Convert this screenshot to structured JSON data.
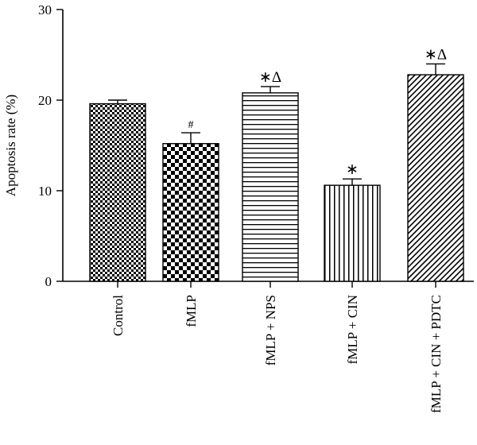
{
  "chart_data": {
    "type": "bar",
    "title": "",
    "xlabel": "",
    "ylabel": "Apoptosis rate (%)",
    "ylim": [
      0,
      30
    ],
    "yticks": [
      0,
      10,
      20,
      30
    ],
    "categories": [
      "Control",
      "fMLP",
      "fMLP + NPS",
      "fMLP + CIN",
      "fMLP + CIN + PDTC"
    ],
    "values": [
      19.6,
      15.2,
      20.8,
      10.6,
      22.8
    ],
    "errors": [
      0.4,
      1.2,
      0.7,
      0.7,
      1.2
    ],
    "annotations": [
      "",
      "#",
      "∗Δ",
      "∗",
      "∗Δ"
    ],
    "patterns": [
      "small-checker",
      "large-checker",
      "horizontal-lines",
      "vertical-lines",
      "diagonal-lines"
    ]
  }
}
